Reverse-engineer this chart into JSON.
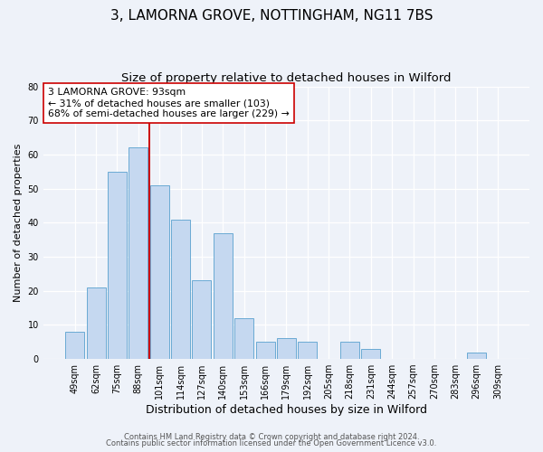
{
  "title": "3, LAMORNA GROVE, NOTTINGHAM, NG11 7BS",
  "subtitle": "Size of property relative to detached houses in Wilford",
  "xlabel": "Distribution of detached houses by size in Wilford",
  "ylabel": "Number of detached properties",
  "bar_labels": [
    "49sqm",
    "62sqm",
    "75sqm",
    "88sqm",
    "101sqm",
    "114sqm",
    "127sqm",
    "140sqm",
    "153sqm",
    "166sqm",
    "179sqm",
    "192sqm",
    "205sqm",
    "218sqm",
    "231sqm",
    "244sqm",
    "257sqm",
    "270sqm",
    "283sqm",
    "296sqm",
    "309sqm"
  ],
  "bar_values": [
    8,
    21,
    55,
    62,
    51,
    41,
    23,
    37,
    12,
    5,
    6,
    5,
    0,
    5,
    3,
    0,
    0,
    0,
    0,
    2,
    0
  ],
  "bar_color": "#c5d8f0",
  "bar_edge_color": "#6aaad4",
  "vline_x_index": 3,
  "vline_color": "#cc0000",
  "annotation_text": "3 LAMORNA GROVE: 93sqm\n← 31% of detached houses are smaller (103)\n68% of semi-detached houses are larger (229) →",
  "annotation_box_color": "#ffffff",
  "annotation_box_edge": "#cc0000",
  "ylim": [
    0,
    80
  ],
  "yticks": [
    0,
    10,
    20,
    30,
    40,
    50,
    60,
    70,
    80
  ],
  "bg_color": "#eef2f9",
  "grid_color": "#ffffff",
  "footer1": "Contains HM Land Registry data © Crown copyright and database right 2024.",
  "footer2": "Contains public sector information licensed under the Open Government Licence v3.0.",
  "title_fontsize": 11,
  "subtitle_fontsize": 9.5,
  "xlabel_fontsize": 9,
  "ylabel_fontsize": 8,
  "tick_fontsize": 7,
  "annotation_fontsize": 7.8,
  "footer_fontsize": 6
}
